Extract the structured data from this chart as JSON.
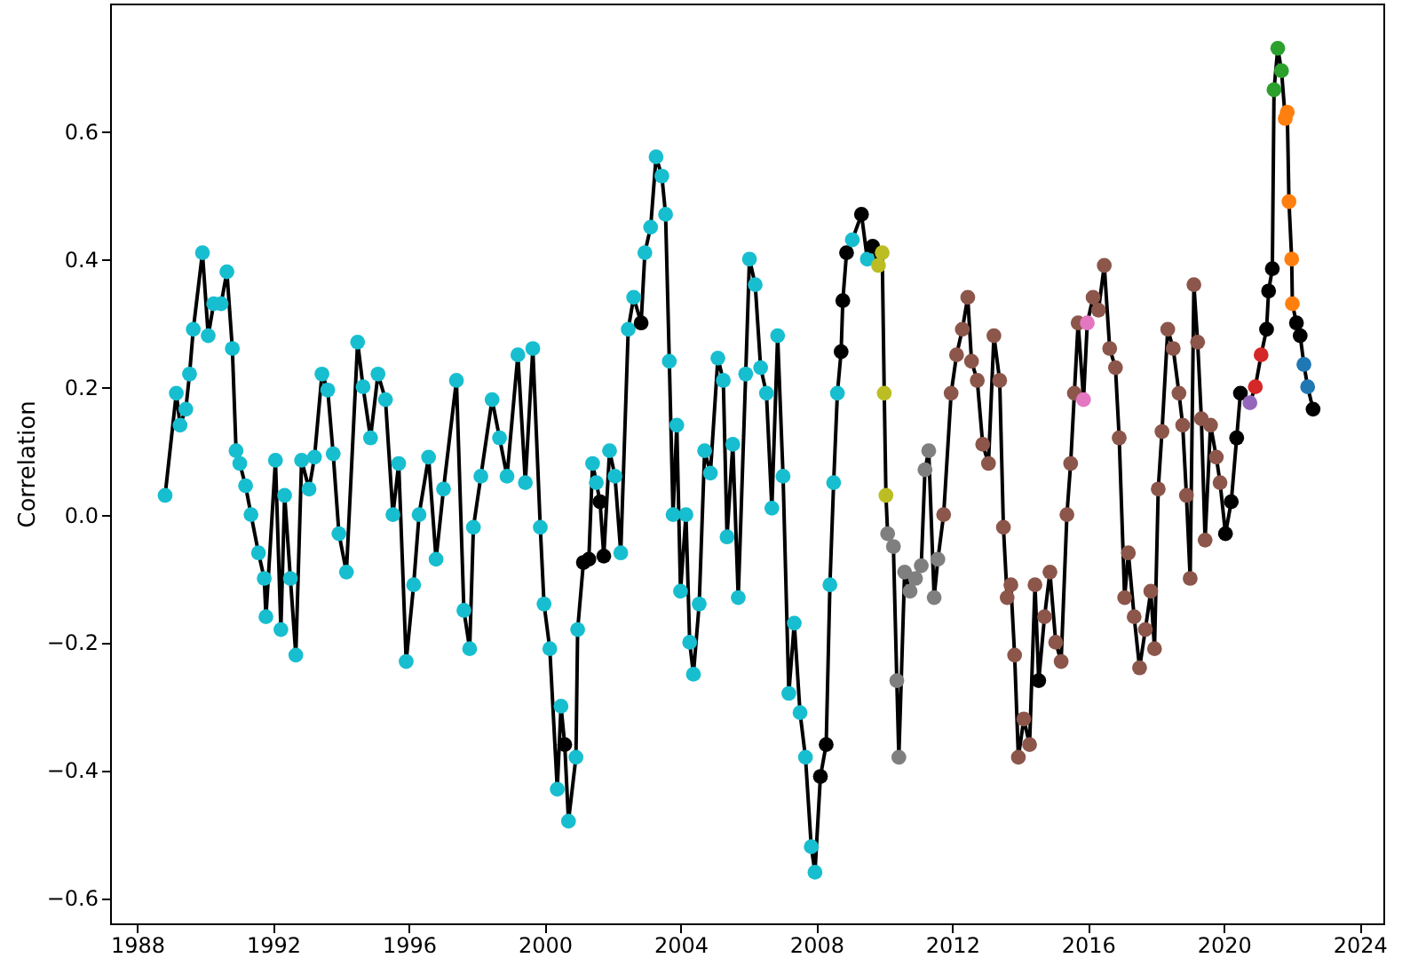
{
  "chart_data": {
    "type": "line",
    "ylabel": "Correlation",
    "marker": "circle",
    "line_style": "solid",
    "grid": false,
    "xlim": [
      1987.2,
      2024.7
    ],
    "xticks": [
      1988,
      1992,
      1996,
      2000,
      2004,
      2008,
      2012,
      2016,
      2020,
      2024
    ],
    "ylim": [
      -0.64,
      0.8
    ],
    "yticks": [
      -0.6,
      -0.4,
      -0.2,
      {
        "value": 0,
        "label": "0.0"
      },
      0.2,
      0.4,
      0.6
    ],
    "series": [
      {
        "color": "#000000",
        "x": [
          1988.82,
          1989.15,
          1989.26,
          1989.43,
          1989.54,
          1989.65,
          1989.92,
          1990.09,
          1990.25,
          1990.47,
          1990.64,
          1990.8,
          1990.91,
          1991.02,
          1991.19,
          1991.35,
          1991.57,
          1991.74,
          1991.79,
          1992.07,
          1992.23,
          1992.34,
          1992.51,
          1992.67,
          1992.84,
          1993.06,
          1993.22,
          1993.44,
          1993.61,
          1993.77,
          1993.94,
          1994.16,
          1994.49,
          1994.65,
          1994.87,
          1995.09,
          1995.31,
          1995.53,
          1995.7,
          1995.92,
          1996.14,
          1996.3,
          1996.58,
          1996.8,
          1997.02,
          1997.4,
          1997.62,
          1997.79,
          1997.9,
          1998.12,
          1998.45,
          1998.67,
          1998.89,
          1999.21,
          1999.43,
          1999.65,
          1999.87,
          1999.98,
          2000.15,
          2000.37,
          2000.48,
          2000.59,
          2000.7,
          2000.92,
          2000.97,
          2001.14,
          2001.3,
          2001.41,
          2001.52,
          2001.63,
          2001.74,
          2001.91,
          2002.07,
          2002.24,
          2002.46,
          2002.62,
          2002.84,
          2002.95,
          2003.12,
          2003.28,
          2003.45,
          2003.56,
          2003.67,
          2003.78,
          2003.89,
          2004.0,
          2004.16,
          2004.27,
          2004.38,
          2004.55,
          2004.71,
          2004.88,
          2005.1,
          2005.26,
          2005.37,
          2005.54,
          2005.7,
          2005.92,
          2006.03,
          2006.2,
          2006.36,
          2006.53,
          2006.69,
          2006.86,
          2007.02,
          2007.19,
          2007.35,
          2007.52,
          2007.68,
          2007.85,
          2007.96,
          2008.12,
          2008.29,
          2008.4,
          2008.51,
          2008.62,
          2008.73,
          2008.78,
          2008.89,
          2009.06,
          2009.33,
          2009.5,
          2009.66,
          2009.83,
          2009.94,
          2010.0,
          2010.05,
          2010.1,
          2010.27,
          2010.37,
          2010.43,
          2010.6,
          2010.76,
          2010.92,
          2011.09,
          2011.2,
          2011.31,
          2011.47,
          2011.58,
          2011.75,
          2011.97,
          2012.13,
          2012.3,
          2012.46,
          2012.57,
          2012.74,
          2012.9,
          2013.07,
          2013.23,
          2013.4,
          2013.51,
          2013.62,
          2013.73,
          2013.84,
          2013.95,
          2014.11,
          2014.28,
          2014.44,
          2014.55,
          2014.72,
          2014.88,
          2015.05,
          2015.21,
          2015.38,
          2015.49,
          2015.6,
          2015.71,
          2015.87,
          2015.98,
          2016.15,
          2016.31,
          2016.48,
          2016.64,
          2016.81,
          2016.92,
          2017.08,
          2017.19,
          2017.36,
          2017.52,
          2017.69,
          2017.85,
          2017.96,
          2018.07,
          2018.18,
          2018.35,
          2018.51,
          2018.68,
          2018.79,
          2018.9,
          2019.01,
          2019.12,
          2019.23,
          2019.34,
          2019.45,
          2019.61,
          2019.78,
          2019.89,
          2020.05,
          2020.22,
          2020.38,
          2020.49,
          2020.77,
          2020.93,
          2021.1,
          2021.26,
          2021.32,
          2021.43,
          2021.48,
          2021.59,
          2021.7,
          2021.81,
          2021.87,
          2021.92,
          2022.0,
          2022.02,
          2022.14,
          2022.25,
          2022.36,
          2022.47,
          2022.63
        ],
        "values": [
          0.03,
          0.19,
          0.14,
          0.165,
          0.22,
          0.29,
          0.41,
          0.28,
          0.33,
          0.33,
          0.38,
          0.26,
          0.1,
          0.08,
          0.045,
          0.0,
          -0.06,
          -0.1,
          -0.16,
          0.085,
          -0.18,
          0.03,
          -0.1,
          -0.22,
          0.085,
          0.04,
          0.09,
          0.22,
          0.195,
          0.095,
          -0.03,
          -0.09,
          0.27,
          0.2,
          0.12,
          0.22,
          0.18,
          0.0,
          0.08,
          -0.23,
          -0.11,
          0.0,
          0.09,
          -0.07,
          0.04,
          0.21,
          -0.15,
          -0.21,
          -0.02,
          0.06,
          0.18,
          0.12,
          0.06,
          0.25,
          0.05,
          0.26,
          -0.02,
          -0.14,
          -0.21,
          -0.43,
          -0.3,
          -0.36,
          -0.48,
          -0.38,
          -0.18,
          -0.075,
          -0.07,
          0.08,
          0.05,
          0.02,
          -0.065,
          0.1,
          0.06,
          -0.06,
          0.29,
          0.34,
          0.3,
          0.41,
          0.45,
          0.56,
          0.53,
          0.47,
          0.24,
          0.0,
          0.14,
          -0.12,
          0.0,
          -0.2,
          -0.25,
          -0.14,
          0.1,
          0.065,
          0.245,
          0.21,
          -0.035,
          0.11,
          -0.13,
          0.22,
          0.4,
          0.36,
          0.23,
          0.19,
          0.01,
          0.28,
          0.06,
          -0.28,
          -0.17,
          -0.31,
          -0.38,
          -0.52,
          -0.56,
          -0.41,
          -0.36,
          -0.11,
          0.05,
          0.19,
          0.255,
          0.335,
          0.41,
          0.43,
          0.47,
          0.4,
          0.42,
          0.39,
          0.41,
          0.19,
          0.03,
          -0.03,
          -0.05,
          -0.26,
          -0.38,
          -0.09,
          -0.12,
          -0.1,
          -0.08,
          0.07,
          0.1,
          -0.13,
          -0.07,
          0.0,
          0.19,
          0.25,
          0.29,
          0.34,
          0.24,
          0.21,
          0.11,
          0.08,
          0.28,
          0.21,
          -0.02,
          -0.13,
          -0.11,
          -0.22,
          -0.38,
          -0.32,
          -0.36,
          -0.11,
          -0.26,
          -0.16,
          -0.09,
          -0.2,
          -0.23,
          0.0,
          0.08,
          0.19,
          0.3,
          0.18,
          0.3,
          0.34,
          0.32,
          0.39,
          0.26,
          0.23,
          0.12,
          -0.13,
          -0.06,
          -0.16,
          -0.24,
          -0.18,
          -0.12,
          -0.21,
          0.04,
          0.13,
          0.29,
          0.26,
          0.19,
          0.14,
          0.03,
          -0.1,
          0.36,
          0.27,
          0.15,
          -0.04,
          0.14,
          0.09,
          0.05,
          -0.03,
          0.02,
          0.12,
          0.19,
          0.175,
          0.2,
          0.25,
          0.29,
          0.35,
          0.385,
          0.665,
          0.73,
          0.695,
          0.62,
          0.63,
          0.49,
          0.4,
          0.33,
          0.3,
          0.28,
          0.235,
          0.2,
          0.165
        ],
        "colors": [
          "#17becf",
          "#17becf",
          "#17becf",
          "#17becf",
          "#17becf",
          "#17becf",
          "#17becf",
          "#17becf",
          "#17becf",
          "#17becf",
          "#17becf",
          "#17becf",
          "#17becf",
          "#17becf",
          "#17becf",
          "#17becf",
          "#17becf",
          "#17becf",
          "#17becf",
          "#17becf",
          "#17becf",
          "#17becf",
          "#17becf",
          "#17becf",
          "#17becf",
          "#17becf",
          "#17becf",
          "#17becf",
          "#17becf",
          "#17becf",
          "#17becf",
          "#17becf",
          "#17becf",
          "#17becf",
          "#17becf",
          "#17becf",
          "#17becf",
          "#17becf",
          "#17becf",
          "#17becf",
          "#17becf",
          "#17becf",
          "#17becf",
          "#17becf",
          "#17becf",
          "#17becf",
          "#17becf",
          "#17becf",
          "#17becf",
          "#17becf",
          "#17becf",
          "#17becf",
          "#17becf",
          "#17becf",
          "#17becf",
          "#17becf",
          "#17becf",
          "#17becf",
          "#17becf",
          "#17becf",
          "#17becf",
          "#000000",
          "#17becf",
          "#17becf",
          "#17becf",
          "#000000",
          "#000000",
          "#17becf",
          "#17becf",
          "#000000",
          "#000000",
          "#17becf",
          "#17becf",
          "#17becf",
          "#17becf",
          "#17becf",
          "#000000",
          "#17becf",
          "#17becf",
          "#17becf",
          "#17becf",
          "#17becf",
          "#17becf",
          "#17becf",
          "#17becf",
          "#17becf",
          "#17becf",
          "#17becf",
          "#17becf",
          "#17becf",
          "#17becf",
          "#17becf",
          "#17becf",
          "#17becf",
          "#17becf",
          "#17becf",
          "#17becf",
          "#17becf",
          "#17becf",
          "#17becf",
          "#17becf",
          "#17becf",
          "#17becf",
          "#17becf",
          "#17becf",
          "#17becf",
          "#17becf",
          "#17becf",
          "#17becf",
          "#17becf",
          "#17becf",
          "#000000",
          "#000000",
          "#17becf",
          "#17becf",
          "#17becf",
          "#000000",
          "#000000",
          "#000000",
          "#17becf",
          "#000000",
          "#17becf",
          "#000000",
          "#bcbd22",
          "#bcbd22",
          "#bcbd22",
          "#bcbd22",
          "#7f7f7f",
          "#7f7f7f",
          "#7f7f7f",
          "#7f7f7f",
          "#7f7f7f",
          "#7f7f7f",
          "#7f7f7f",
          "#7f7f7f",
          "#7f7f7f",
          "#7f7f7f",
          "#7f7f7f",
          "#7f7f7f",
          "#8c564b",
          "#8c564b",
          "#8c564b",
          "#8c564b",
          "#8c564b",
          "#8c564b",
          "#8c564b",
          "#8c564b",
          "#8c564b",
          "#8c564b",
          "#8c564b",
          "#8c564b",
          "#8c564b",
          "#8c564b",
          "#8c564b",
          "#8c564b",
          "#8c564b",
          "#8c564b",
          "#8c564b",
          "#000000",
          "#8c564b",
          "#8c564b",
          "#8c564b",
          "#8c564b",
          "#8c564b",
          "#8c564b",
          "#8c564b",
          "#8c564b",
          "#e377c2",
          "#e377c2",
          "#8c564b",
          "#8c564b",
          "#8c564b",
          "#8c564b",
          "#8c564b",
          "#8c564b",
          "#8c564b",
          "#8c564b",
          "#8c564b",
          "#8c564b",
          "#8c564b",
          "#8c564b",
          "#8c564b",
          "#8c564b",
          "#8c564b",
          "#8c564b",
          "#8c564b",
          "#8c564b",
          "#8c564b",
          "#8c564b",
          "#8c564b",
          "#8c564b",
          "#8c564b",
          "#8c564b",
          "#8c564b",
          "#8c564b",
          "#8c564b",
          "#8c564b",
          "#000000",
          "#000000",
          "#000000",
          "#000000",
          "#9467bd",
          "#d62728",
          "#d62728",
          "#000000",
          "#000000",
          "#000000",
          "#2ca02c",
          "#2ca02c",
          "#2ca02c",
          "#ff7f0e",
          "#ff7f0e",
          "#ff7f0e",
          "#ff7f0e",
          "#ff7f0e",
          "#000000",
          "#000000",
          "#1f77b4",
          "#1f77b4",
          "#000000"
        ]
      }
    ]
  }
}
